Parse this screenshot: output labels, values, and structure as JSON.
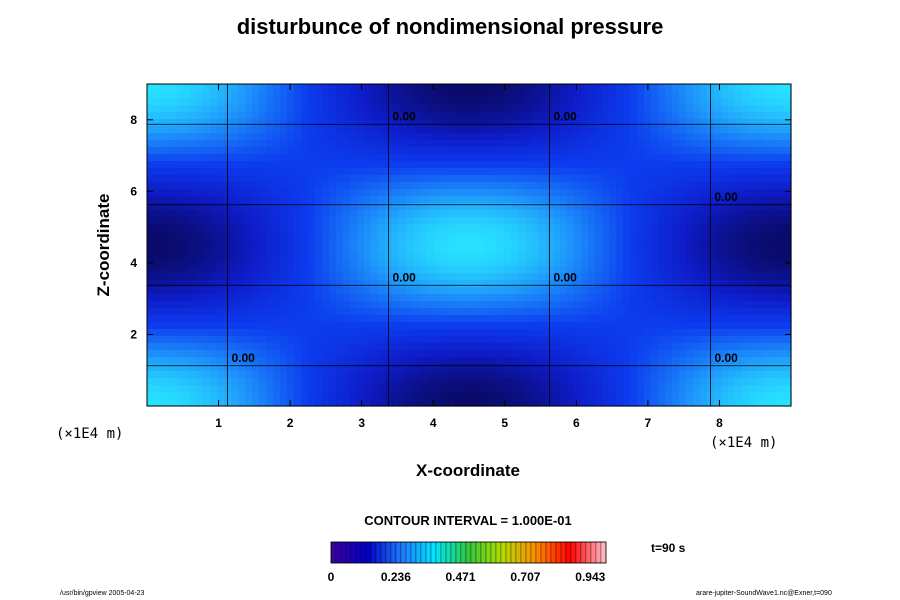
{
  "chart_data": {
    "type": "heatmap",
    "title": "disturbunce of nondimensional pressure",
    "xlabel": "X-coordinate",
    "ylabel": "Z-coordinate",
    "x_unit_label": "(×1E4 m)",
    "y_unit_label": "(×1E4 m)",
    "xlim": [
      0,
      9
    ],
    "ylim": [
      0,
      9
    ],
    "x_ticks": [
      "1",
      "2",
      "3",
      "4",
      "5",
      "6",
      "7",
      "8"
    ],
    "y_ticks": [
      "2",
      "4",
      "6",
      "8"
    ],
    "contour_level": 0,
    "contour_labels": [
      "0.00",
      "0.00",
      "0.00",
      "0.00",
      "0.00",
      "0.00",
      "0.00"
    ],
    "pattern": {
      "kx": 2,
      "kz": 2,
      "amplitude": 0.12
    },
    "contour_interval_text": "CONTOUR INTERVAL = 1.000E-01",
    "colorbar": {
      "tick_labels": [
        "0",
        "0.236",
        "0.471",
        "0.707",
        "0.943"
      ],
      "colors": [
        "#3a00a0",
        "#0000c8",
        "#1e78ff",
        "#00e6ff",
        "#32c83c",
        "#b4dc00",
        "#ff8c00",
        "#ff0000",
        "#ffb4be"
      ]
    },
    "time_label": "t=90 s",
    "grid": false,
    "legend": "colorbar-bottom"
  },
  "footer": {
    "left": "/usr/bin/gpview 2005-04-23",
    "right": "arare-jupiter-SoundWave1.nc@Exner,t=090"
  }
}
